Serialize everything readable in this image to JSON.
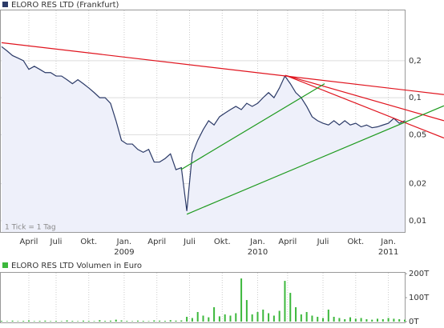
{
  "chart_data": [
    {
      "type": "line",
      "title": "ELORO RES LTD (Frankfurt)",
      "annotation": "1 Tick = 1 Tag",
      "color": "#2b3a67",
      "fill": "#eef0fa",
      "log_scale": true,
      "grid": true,
      "xlim": [
        0,
        74
      ],
      "ylim": [
        0.0081,
        0.52
      ],
      "yticks": [
        {
          "value": 0.01,
          "label": "0,01"
        },
        {
          "value": 0.02,
          "label": "0,02"
        },
        {
          "value": 0.05,
          "label": "0,05"
        },
        {
          "value": 0.1,
          "label": "0,1"
        },
        {
          "value": 0.2,
          "label": "0,2"
        }
      ],
      "xticks": [
        {
          "value": 5,
          "label": "April"
        },
        {
          "value": 10,
          "label": "Juli"
        },
        {
          "value": 16,
          "label": "Okt."
        },
        {
          "value": 22.5,
          "label": "Jan.",
          "year": "2009"
        },
        {
          "value": 28.5,
          "label": "April"
        },
        {
          "value": 34.5,
          "label": "Juli"
        },
        {
          "value": 40.5,
          "label": "Okt."
        },
        {
          "value": 47,
          "label": "Jan.",
          "year": "2010"
        },
        {
          "value": 52.5,
          "label": "April"
        },
        {
          "value": 59,
          "label": "Juli"
        },
        {
          "value": 65,
          "label": "Okt."
        },
        {
          "value": 71,
          "label": "Jan.",
          "year": "2011"
        }
      ],
      "values": [
        0.26,
        0.24,
        0.22,
        0.21,
        0.2,
        0.17,
        0.18,
        0.17,
        0.16,
        0.16,
        0.15,
        0.15,
        0.14,
        0.13,
        0.14,
        0.13,
        0.12,
        0.11,
        0.1,
        0.1,
        0.09,
        0.065,
        0.045,
        0.042,
        0.042,
        0.038,
        0.036,
        0.038,
        0.03,
        0.03,
        0.032,
        0.035,
        0.026,
        0.027,
        0.012,
        0.035,
        0.045,
        0.055,
        0.065,
        0.06,
        0.07,
        0.075,
        0.08,
        0.085,
        0.08,
        0.09,
        0.085,
        0.09,
        0.1,
        0.11,
        0.1,
        0.12,
        0.15,
        0.13,
        0.11,
        0.1,
        0.085,
        0.07,
        0.065,
        0.062,
        0.06,
        0.065,
        0.06,
        0.065,
        0.06,
        0.062,
        0.058,
        0.06,
        0.057,
        0.058,
        0.06,
        0.062,
        0.068,
        0.062,
        0.065
      ],
      "trendlines": [
        {
          "color": "#e0141e",
          "from": [
            0,
            0.28
          ],
          "to": [
            81.2,
            0.106
          ]
        },
        {
          "color": "#e0141e",
          "from": [
            52.1,
            0.152
          ],
          "to": [
            81.2,
            0.047
          ]
        },
        {
          "color": "#e0141e",
          "from": [
            52.1,
            0.152
          ],
          "to": [
            81.2,
            0.065
          ]
        },
        {
          "color": "#1e9a1e",
          "from": [
            32.9,
            0.026
          ],
          "to": [
            59.3,
            0.13
          ]
        },
        {
          "color": "#1e9a1e",
          "from": [
            34,
            0.0113
          ],
          "to": [
            81.2,
            0.086
          ]
        }
      ]
    },
    {
      "type": "bar",
      "title": "ELORO RES LTD Volumen in Euro",
      "color": "#3cb83c",
      "xlim": [
        0,
        74
      ],
      "ylim": [
        0,
        207
      ],
      "yticks": [
        {
          "value": 0,
          "label": "0T"
        },
        {
          "value": 100,
          "label": "100T"
        },
        {
          "value": 200,
          "label": "200T"
        }
      ],
      "values": [
        3,
        2,
        4,
        2,
        3,
        5,
        2,
        3,
        4,
        2,
        3,
        2,
        5,
        3,
        2,
        4,
        3,
        2,
        6,
        3,
        4,
        8,
        5,
        3,
        2,
        4,
        3,
        2,
        5,
        4,
        3,
        6,
        4,
        5,
        20,
        15,
        40,
        25,
        18,
        60,
        22,
        30,
        25,
        35,
        180,
        90,
        30,
        40,
        50,
        35,
        25,
        45,
        170,
        120,
        60,
        30,
        40,
        25,
        20,
        15,
        50,
        20,
        15,
        10,
        18,
        12,
        15,
        10,
        8,
        12,
        10,
        15,
        12,
        10,
        8
      ]
    }
  ]
}
